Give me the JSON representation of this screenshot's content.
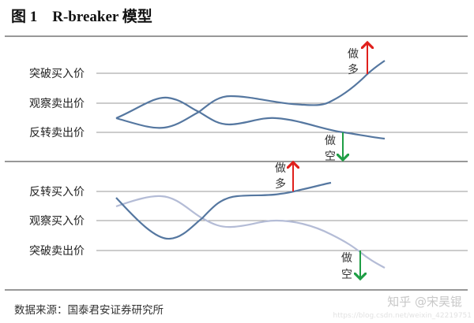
{
  "title": "图 1　R-breaker 模型",
  "top_panel": {
    "levels": [
      "突破买入价",
      "观察卖出价",
      "反转卖出价"
    ],
    "long_label": [
      "做",
      "多"
    ],
    "short_label": [
      "做",
      "空"
    ]
  },
  "bottom_panel": {
    "levels": [
      "反转买入价",
      "观察买入价",
      "突破卖出价"
    ],
    "long_label": [
      "做",
      "多"
    ],
    "short_label": [
      "做",
      "空"
    ]
  },
  "source": "数据来源：国泰君安证券研究所",
  "watermark": {
    "line1": "知乎 @宋昊锟",
    "line2": "https://blog.csdn.net/weixin_42219751"
  },
  "colors": {
    "curve_dark": "#5577a0",
    "curve_light": "#b4bcd6",
    "long": "#e0201c",
    "short": "#1f9e45",
    "rule": "#888888"
  }
}
